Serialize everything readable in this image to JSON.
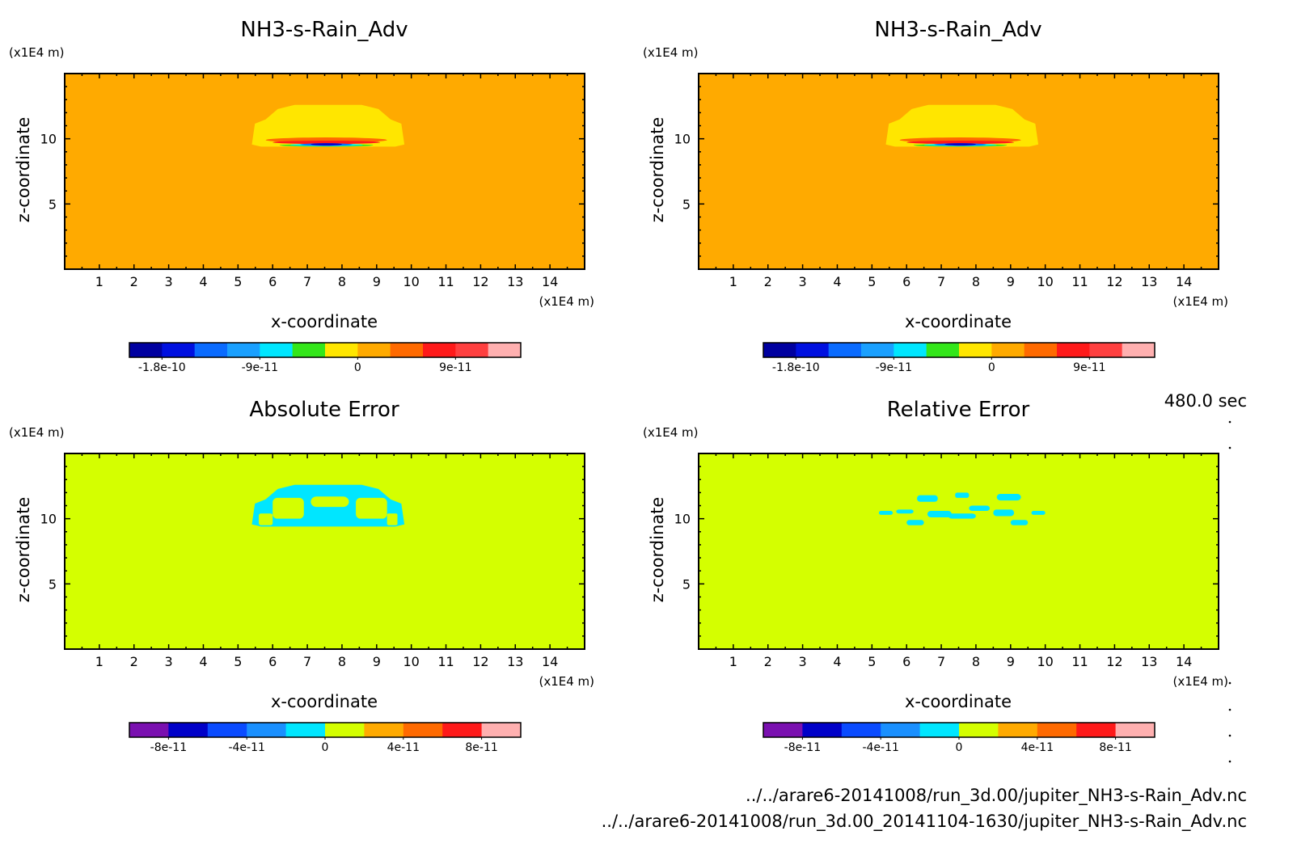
{
  "time_label": "480.0 sec",
  "files": [
    "../../arare6-20141008/run_3d.00/jupiter_NH3-s-Rain_Adv.nc",
    "../../arare6-20141008/run_3d.00_20141104-1630/jupiter_NH3-s-Rain_Adv.nc"
  ],
  "chart_data": [
    {
      "type": "heatmap",
      "title": "NH3-s-Rain_Adv",
      "xlabel": "x-coordinate",
      "ylabel": "z-coordinate",
      "x_unit": "(x1E4 m)",
      "y_unit": "(x1E4 m)",
      "xlim": [
        0,
        15
      ],
      "ylim": [
        0,
        15
      ],
      "x_ticks": [
        1,
        2,
        3,
        4,
        5,
        6,
        7,
        8,
        9,
        10,
        11,
        12,
        13,
        14
      ],
      "y_ticks": [
        5,
        10
      ],
      "background_color": "#ffaa00",
      "features": [
        {
          "shape": "cap",
          "x": [
            5.4,
            9.8
          ],
          "z": [
            9.4,
            12.6
          ],
          "color": "#ffe600"
        },
        {
          "shape": "layer",
          "x": [
            5.8,
            9.3
          ],
          "z": [
            9.7,
            10.1
          ],
          "color": "#ff6a00"
        },
        {
          "shape": "layer",
          "x": [
            6.0,
            9.1
          ],
          "z": [
            9.6,
            9.85
          ],
          "color": "#ff1a1a"
        },
        {
          "shape": "layer",
          "x": [
            6.2,
            8.9
          ],
          "z": [
            9.4,
            9.6
          ],
          "color": "#33e61a"
        },
        {
          "shape": "layer",
          "x": [
            6.5,
            8.6
          ],
          "z": [
            9.45,
            9.6
          ],
          "color": "#00e6ff"
        },
        {
          "shape": "layer",
          "x": [
            6.8,
            8.3
          ],
          "z": [
            9.5,
            9.62
          ],
          "color": "#0a6bff"
        },
        {
          "shape": "layer",
          "x": [
            7.1,
            8.0
          ],
          "z": [
            9.52,
            9.62
          ],
          "color": "#0a00c8"
        }
      ],
      "colorbar": {
        "colors": [
          "#0000a0",
          "#0010e0",
          "#0a6bff",
          "#1aa0ff",
          "#00e6ff",
          "#33e61a",
          "#ffe600",
          "#ffaa00",
          "#ff6a00",
          "#ff1a1a",
          "#ff4040",
          "#ffb0b0"
        ],
        "tick_labels": [
          "-1.8e-10",
          "-9e-11",
          "0",
          "9e-11"
        ]
      }
    },
    {
      "type": "heatmap",
      "title": "NH3-s-Rain_Adv",
      "xlabel": "x-coordinate",
      "ylabel": "z-coordinate",
      "x_unit": "(x1E4 m)",
      "y_unit": "(x1E4 m)",
      "xlim": [
        0,
        15
      ],
      "ylim": [
        0,
        15
      ],
      "x_ticks": [
        1,
        2,
        3,
        4,
        5,
        6,
        7,
        8,
        9,
        10,
        11,
        12,
        13,
        14
      ],
      "y_ticks": [
        5,
        10
      ],
      "background_color": "#ffaa00",
      "features": [
        {
          "shape": "cap",
          "x": [
            5.4,
            9.8
          ],
          "z": [
            9.4,
            12.6
          ],
          "color": "#ffe600"
        },
        {
          "shape": "layer",
          "x": [
            5.8,
            9.3
          ],
          "z": [
            9.7,
            10.1
          ],
          "color": "#ff6a00"
        },
        {
          "shape": "layer",
          "x": [
            6.0,
            9.1
          ],
          "z": [
            9.6,
            9.85
          ],
          "color": "#ff1a1a"
        },
        {
          "shape": "layer",
          "x": [
            6.2,
            8.9
          ],
          "z": [
            9.4,
            9.6
          ],
          "color": "#33e61a"
        },
        {
          "shape": "layer",
          "x": [
            6.5,
            8.6
          ],
          "z": [
            9.45,
            9.6
          ],
          "color": "#00e6ff"
        },
        {
          "shape": "layer",
          "x": [
            6.8,
            8.3
          ],
          "z": [
            9.5,
            9.62
          ],
          "color": "#0a6bff"
        },
        {
          "shape": "layer",
          "x": [
            7.1,
            8.0
          ],
          "z": [
            9.52,
            9.62
          ],
          "color": "#0a00c8"
        }
      ],
      "colorbar": {
        "colors": [
          "#0000a0",
          "#0010e0",
          "#0a6bff",
          "#1aa0ff",
          "#00e6ff",
          "#33e61a",
          "#ffe600",
          "#ffaa00",
          "#ff6a00",
          "#ff1a1a",
          "#ff4040",
          "#ffb0b0"
        ],
        "tick_labels": [
          "-1.8e-10",
          "-9e-11",
          "0",
          "9e-11"
        ]
      }
    },
    {
      "type": "heatmap",
      "title": "Absolute Error",
      "xlabel": "x-coordinate",
      "ylabel": "z-coordinate",
      "x_unit": "(x1E4 m)",
      "y_unit": "(x1E4 m)",
      "xlim": [
        0,
        15
      ],
      "ylim": [
        0,
        15
      ],
      "x_ticks": [
        1,
        2,
        3,
        4,
        5,
        6,
        7,
        8,
        9,
        10,
        11,
        12,
        13,
        14
      ],
      "y_ticks": [
        5,
        10
      ],
      "background_color": "#d4ff00",
      "features": [
        {
          "shape": "cap",
          "x": [
            5.4,
            9.8
          ],
          "z": [
            9.4,
            12.6
          ],
          "color": "#00e6ff"
        },
        {
          "shape": "hole",
          "x": [
            6.0,
            6.9
          ],
          "z": [
            10.0,
            11.6
          ],
          "color": "#d4ff00"
        },
        {
          "shape": "hole",
          "x": [
            8.4,
            9.3
          ],
          "z": [
            10.0,
            11.6
          ],
          "color": "#d4ff00"
        },
        {
          "shape": "hole",
          "x": [
            7.1,
            8.2
          ],
          "z": [
            10.9,
            11.7
          ],
          "color": "#d4ff00"
        },
        {
          "shape": "hole",
          "x": [
            5.6,
            6.0
          ],
          "z": [
            9.5,
            10.4
          ],
          "color": "#d4ff00"
        },
        {
          "shape": "hole",
          "x": [
            9.3,
            9.6
          ],
          "z": [
            9.5,
            10.4
          ],
          "color": "#d4ff00"
        }
      ],
      "colorbar": {
        "colors": [
          "#7a10b0",
          "#0000c8",
          "#0a4bff",
          "#1a90ff",
          "#00e6ff",
          "#d4ff00",
          "#ffaa00",
          "#ff6a00",
          "#ff1a1a",
          "#ffb0b0"
        ],
        "tick_labels": [
          "-8e-11",
          "-4e-11",
          "0",
          "4e-11",
          "8e-11"
        ]
      }
    },
    {
      "type": "heatmap",
      "title": "Relative Error",
      "xlabel": "x-coordinate",
      "ylabel": "z-coordinate",
      "x_unit": "(x1E4 m)",
      "y_unit": "(x1E4 m)",
      "xlim": [
        0,
        15
      ],
      "ylim": [
        0,
        15
      ],
      "x_ticks": [
        1,
        2,
        3,
        4,
        5,
        6,
        7,
        8,
        9,
        10,
        11,
        12,
        13,
        14
      ],
      "y_ticks": [
        5,
        10
      ],
      "background_color": "#d4ff00",
      "features": [
        {
          "shape": "speck",
          "x": [
            5.7,
            6.2
          ],
          "z": [
            10.4,
            10.7
          ],
          "color": "#00e6ff"
        },
        {
          "shape": "speck",
          "x": [
            6.3,
            6.9
          ],
          "z": [
            11.3,
            11.8
          ],
          "color": "#00e6ff"
        },
        {
          "shape": "speck",
          "x": [
            6.6,
            7.3
          ],
          "z": [
            10.1,
            10.6
          ],
          "color": "#00e6ff"
        },
        {
          "shape": "speck",
          "x": [
            7.2,
            8.0
          ],
          "z": [
            10.0,
            10.4
          ],
          "color": "#00e6ff"
        },
        {
          "shape": "speck",
          "x": [
            7.8,
            8.4
          ],
          "z": [
            10.6,
            11.0
          ],
          "color": "#00e6ff"
        },
        {
          "shape": "speck",
          "x": [
            8.5,
            9.1
          ],
          "z": [
            10.2,
            10.7
          ],
          "color": "#00e6ff"
        },
        {
          "shape": "speck",
          "x": [
            8.6,
            9.3
          ],
          "z": [
            11.4,
            11.9
          ],
          "color": "#00e6ff"
        },
        {
          "shape": "speck",
          "x": [
            6.0,
            6.5
          ],
          "z": [
            9.5,
            9.9
          ],
          "color": "#00e6ff"
        },
        {
          "shape": "speck",
          "x": [
            9.0,
            9.5
          ],
          "z": [
            9.5,
            9.9
          ],
          "color": "#00e6ff"
        },
        {
          "shape": "speck",
          "x": [
            5.2,
            5.6
          ],
          "z": [
            10.3,
            10.6
          ],
          "color": "#00e6ff"
        },
        {
          "shape": "speck",
          "x": [
            9.6,
            10.0
          ],
          "z": [
            10.3,
            10.6
          ],
          "color": "#00e6ff"
        },
        {
          "shape": "speck",
          "x": [
            7.4,
            7.8
          ],
          "z": [
            11.6,
            12.0
          ],
          "color": "#00e6ff"
        }
      ],
      "colorbar": {
        "colors": [
          "#7a10b0",
          "#0000c8",
          "#0a4bff",
          "#1a90ff",
          "#00e6ff",
          "#d4ff00",
          "#ffaa00",
          "#ff6a00",
          "#ff1a1a",
          "#ffb0b0"
        ],
        "tick_labels": [
          "-8e-11",
          "-4e-11",
          "0",
          "4e-11",
          "8e-11"
        ]
      }
    }
  ]
}
